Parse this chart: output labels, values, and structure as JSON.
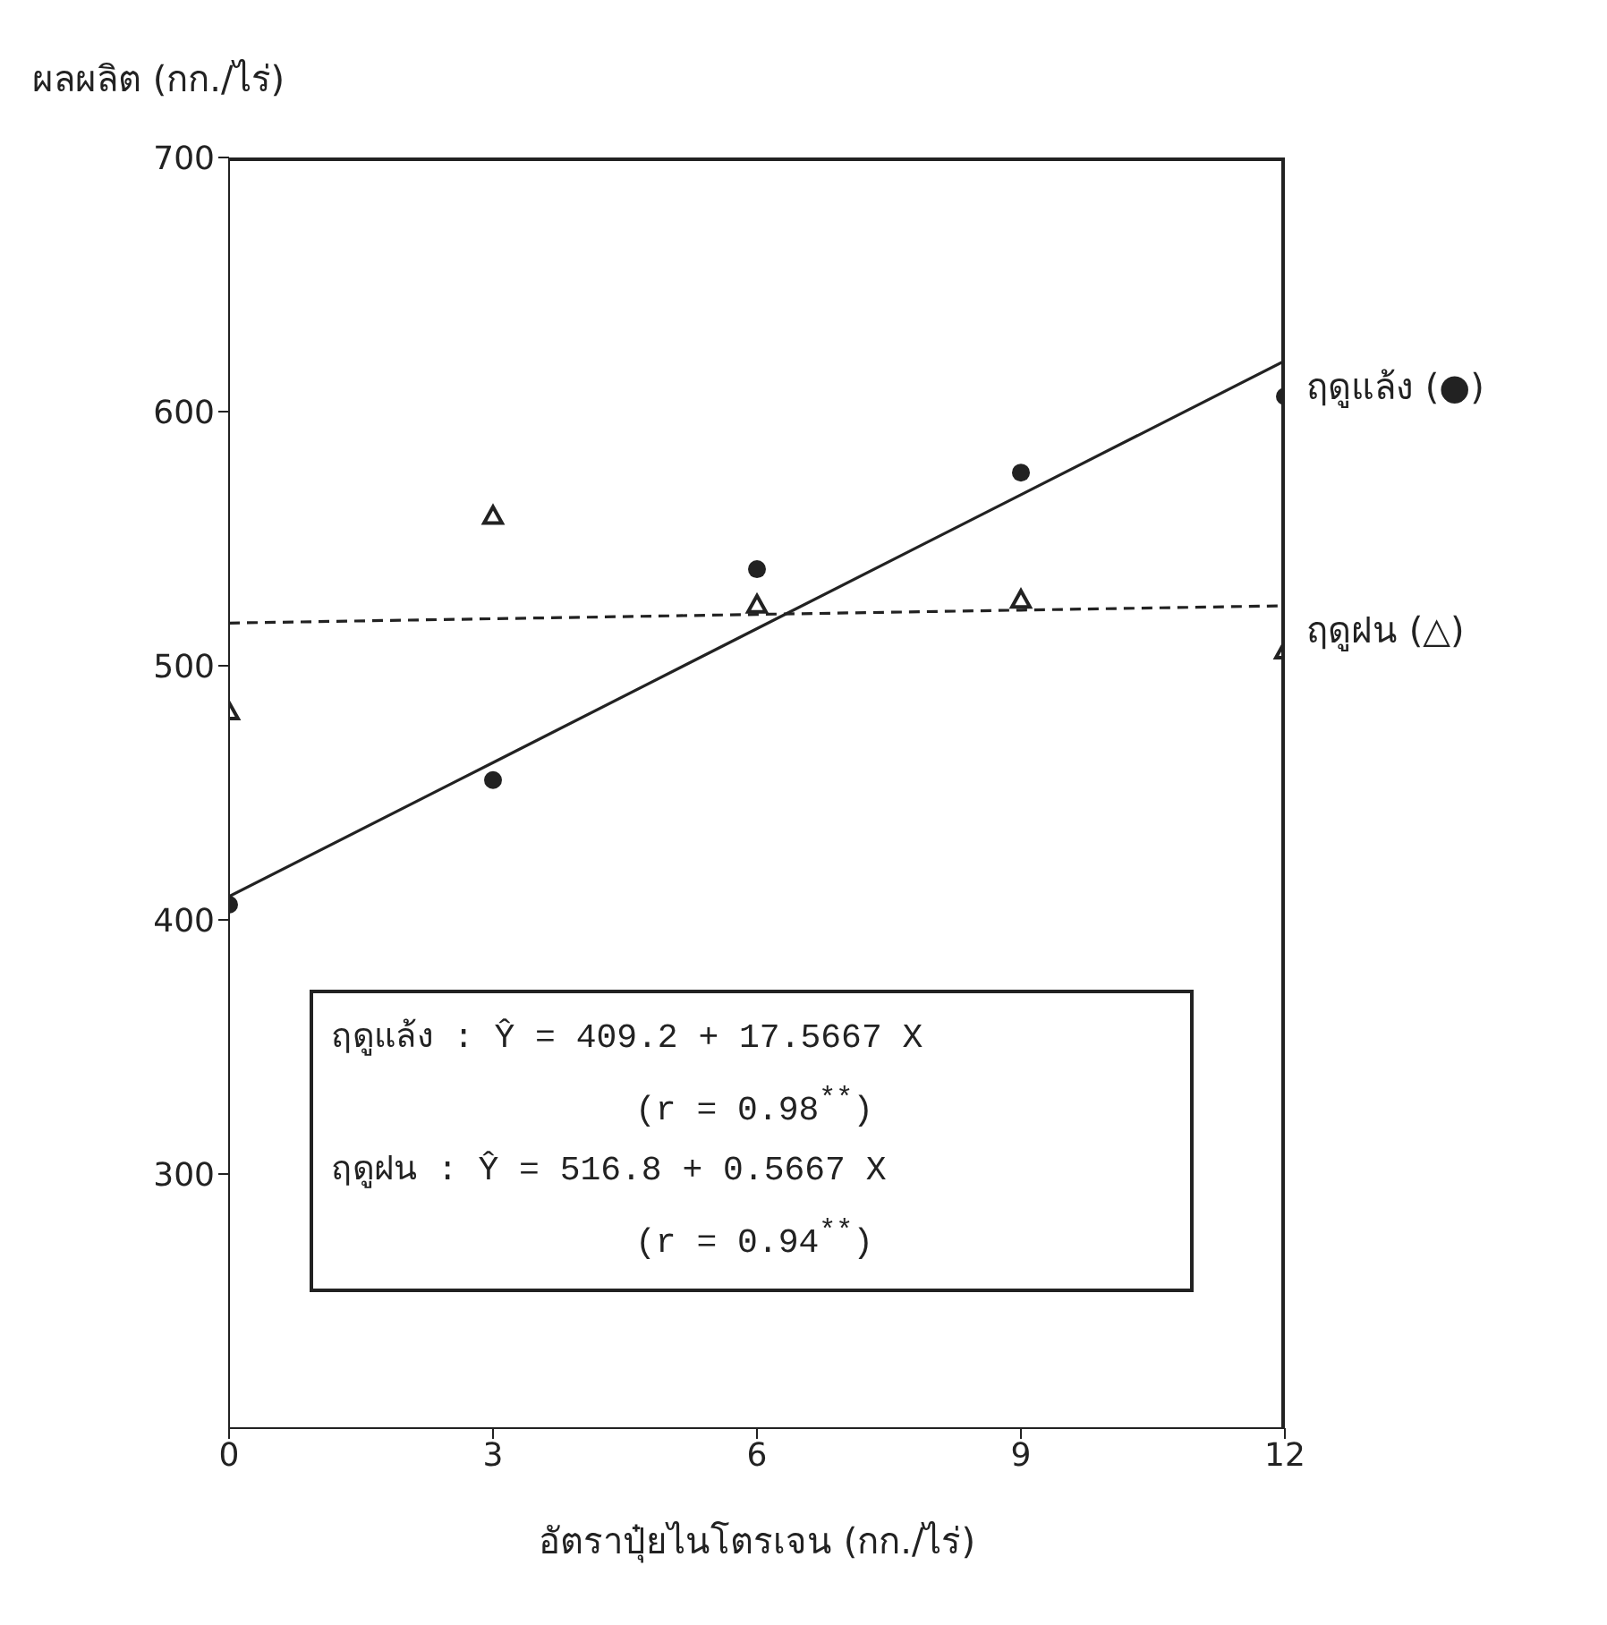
{
  "chart_data": {
    "type": "scatter",
    "xlabel": "อัตราปุ๋ยไนโตรเจน (กก./ไร่)",
    "ylabel": "ผลผลิต (กก./ไร่)",
    "x": [
      0,
      3,
      6,
      9,
      12
    ],
    "series": [
      {
        "name": "ฤดูแล้ง (●)",
        "color": "#222222",
        "marker": "circle",
        "values": [
          406,
          455,
          538,
          576,
          606
        ]
      },
      {
        "name": "ฤดูฝน (△)",
        "color": "#222222",
        "marker": "triangle",
        "values": [
          482,
          559,
          524,
          526,
          506
        ]
      },
      {
        "type": "line",
        "color": "#222222",
        "line_style": "solid",
        "marker": "none",
        "values": [
          409.2,
          461.9,
          514.6,
          567.3,
          620
        ]
      },
      {
        "type": "line",
        "color": "#222222",
        "line_style": "dashed",
        "marker": "none",
        "values": [
          516.8,
          518.5,
          520.2,
          521.9,
          523.6
        ]
      }
    ],
    "xlim": [
      0,
      12
    ],
    "xticks": [
      0,
      3,
      6,
      9,
      12
    ],
    "ylim": [
      200,
      700
    ],
    "yticks": [
      300,
      400,
      500,
      600,
      700
    ],
    "grid": false,
    "legend": false,
    "annotations": [
      "ฤดูแล้ง : Ŷ = 409.2 + 17.5667 X",
      "(r = 0.98$^{**}$)",
      "ฤดูฝน  : Ŷ = 516.8 + 0.5667 X",
      "(r = 0.94$^{**}$)"
    ]
  }
}
